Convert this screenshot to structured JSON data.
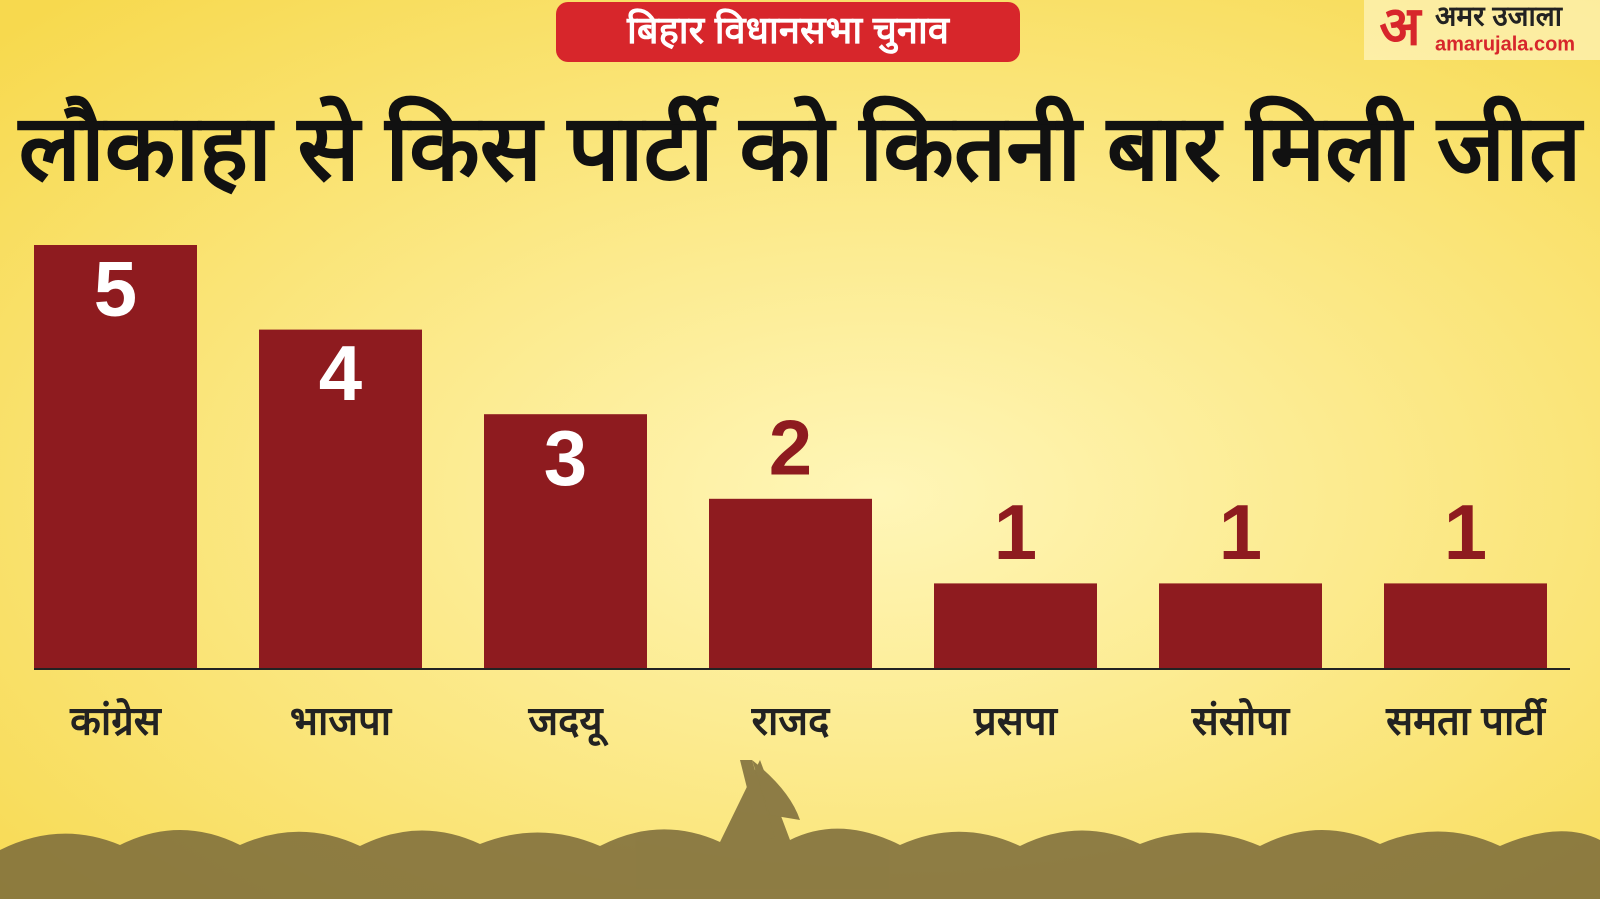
{
  "chart_data": {
    "type": "bar",
    "subtitle": "बिहार विधानसभा चुनाव",
    "title": "लौकाहा से किस पार्टी को कितनी बार मिली जीत",
    "categories": [
      "कांग्रेस",
      "भाजपा",
      "जदयू",
      "राजद",
      "प्रसपा",
      "संसोपा",
      "समता पार्टी"
    ],
    "values": [
      5,
      4,
      3,
      2,
      1,
      1,
      1
    ],
    "color": "#8e1b1f"
  },
  "logo": {
    "mark": "अ",
    "name": "अमर उजाला",
    "site": "amarujala.com"
  }
}
